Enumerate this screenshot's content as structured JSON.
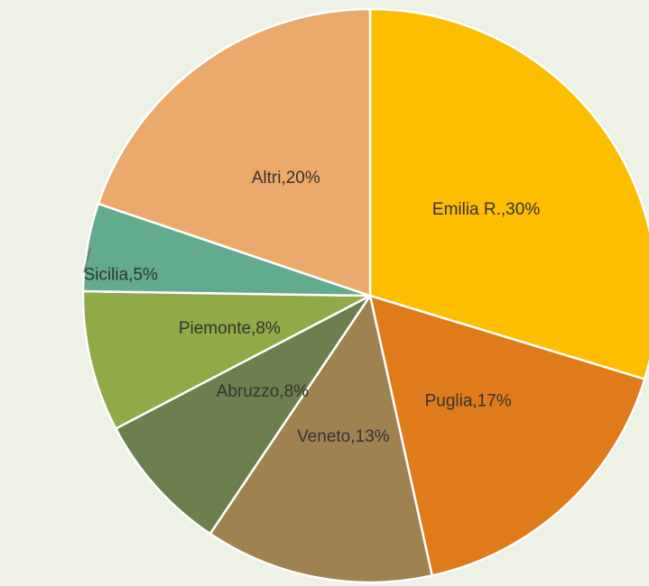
{
  "chart_data": {
    "type": "pie",
    "value_labels": [
      "Emilia R.,30%",
      "Puglia,17%",
      "Veneto,13%",
      "Abruzzo,8%",
      "Piemonte,8%",
      "Sicilia,5%",
      "Altri,20%"
    ],
    "values": [
      30,
      17,
      13,
      8,
      8,
      5,
      20
    ],
    "colors": [
      "#fdbe00",
      "#e07b1b",
      "#9e8250",
      "#6c7f4f",
      "#90aa47",
      "#62ab8f",
      "#ebaa6b"
    ]
  }
}
